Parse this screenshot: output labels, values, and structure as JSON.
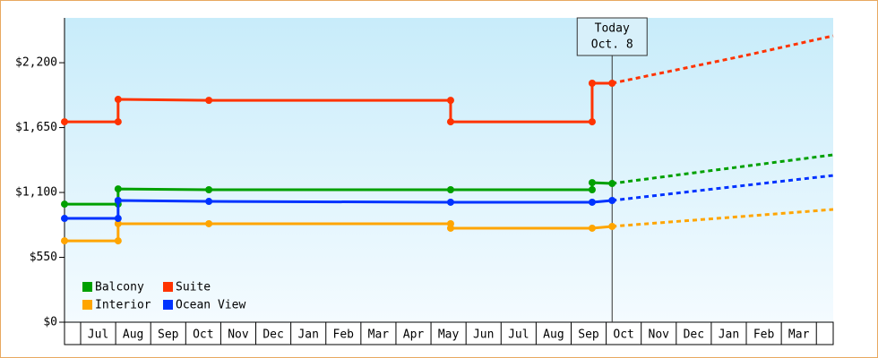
{
  "chart_data": {
    "type": "step-line",
    "ylim": [
      0,
      2580
    ],
    "yticks": [
      {
        "value": 0,
        "label": "$0"
      },
      {
        "value": 550,
        "label": "$550"
      },
      {
        "value": 1100,
        "label": "$1,100"
      },
      {
        "value": 1650,
        "label": "$1,650"
      },
      {
        "value": 2200,
        "label": "$2,200"
      }
    ],
    "xlim": [
      0.54,
      22.48
    ],
    "xticks": [
      {
        "value": 1,
        "label": "Jul"
      },
      {
        "value": 2,
        "label": "Aug"
      },
      {
        "value": 3,
        "label": "Sep"
      },
      {
        "value": 4,
        "label": "Oct"
      },
      {
        "value": 5,
        "label": "Nov"
      },
      {
        "value": 6,
        "label": "Dec"
      },
      {
        "value": 7,
        "label": "Jan"
      },
      {
        "value": 8,
        "label": "Feb"
      },
      {
        "value": 9,
        "label": "Mar"
      },
      {
        "value": 10,
        "label": "Apr"
      },
      {
        "value": 11,
        "label": "May"
      },
      {
        "value": 12,
        "label": "Jun"
      },
      {
        "value": 13,
        "label": "Jul"
      },
      {
        "value": 14,
        "label": "Aug"
      },
      {
        "value": 15,
        "label": "Sep"
      },
      {
        "value": 16,
        "label": "Oct"
      },
      {
        "value": 17,
        "label": "Nov"
      },
      {
        "value": 18,
        "label": "Dec"
      },
      {
        "value": 19,
        "label": "Jan"
      },
      {
        "value": 20,
        "label": "Feb"
      },
      {
        "value": 21,
        "label": "Mar"
      }
    ],
    "today": {
      "x": 16.17,
      "label": "Today",
      "date": "Oct. 8"
    },
    "series": [
      {
        "name": "Balcony",
        "color": "#00a000",
        "x": [
          0.54,
          2.07,
          2.07,
          4.66,
          11.56,
          15.6,
          15.6,
          16.17
        ],
        "values": [
          1001,
          1001,
          1130,
          1123,
          1123,
          1123,
          1183,
          1176
        ],
        "forecast": {
          "x": [
            16.17,
            18,
            20,
            22.48
          ],
          "values": [
            1176,
            1247,
            1324,
            1419
          ]
        }
      },
      {
        "name": "Suite",
        "color": "#ff3300",
        "x": [
          0.54,
          2.07,
          2.07,
          4.66,
          11.56,
          11.56,
          15.6,
          15.6,
          16.17
        ],
        "values": [
          1699,
          1699,
          1889,
          1881,
          1881,
          1699,
          1699,
          2026,
          2026
        ],
        "forecast": {
          "x": [
            16.17,
            18,
            20,
            22.48
          ],
          "values": [
            2026,
            2139,
            2263,
            2428
          ]
        }
      },
      {
        "name": "Interior",
        "color": "#ffa500",
        "x": [
          0.54,
          2.07,
          2.07,
          4.66,
          11.56,
          11.56,
          15.6,
          16.17
        ],
        "values": [
          690,
          690,
          835,
          835,
          835,
          797,
          797,
          812
        ],
        "forecast": {
          "x": [
            16.17,
            18,
            20,
            22.48
          ],
          "values": [
            812,
            854,
            899,
            956
          ]
        }
      },
      {
        "name": "Ocean View",
        "color": "#0033ff",
        "x": [
          0.54,
          2.07,
          2.07,
          4.66,
          11.56,
          15.6,
          16.17
        ],
        "values": [
          880,
          880,
          1032,
          1024,
          1017,
          1017,
          1032
        ],
        "forecast": {
          "x": [
            16.17,
            18,
            20,
            22.48
          ],
          "values": [
            1032,
            1094,
            1161,
            1244
          ]
        }
      }
    ]
  }
}
